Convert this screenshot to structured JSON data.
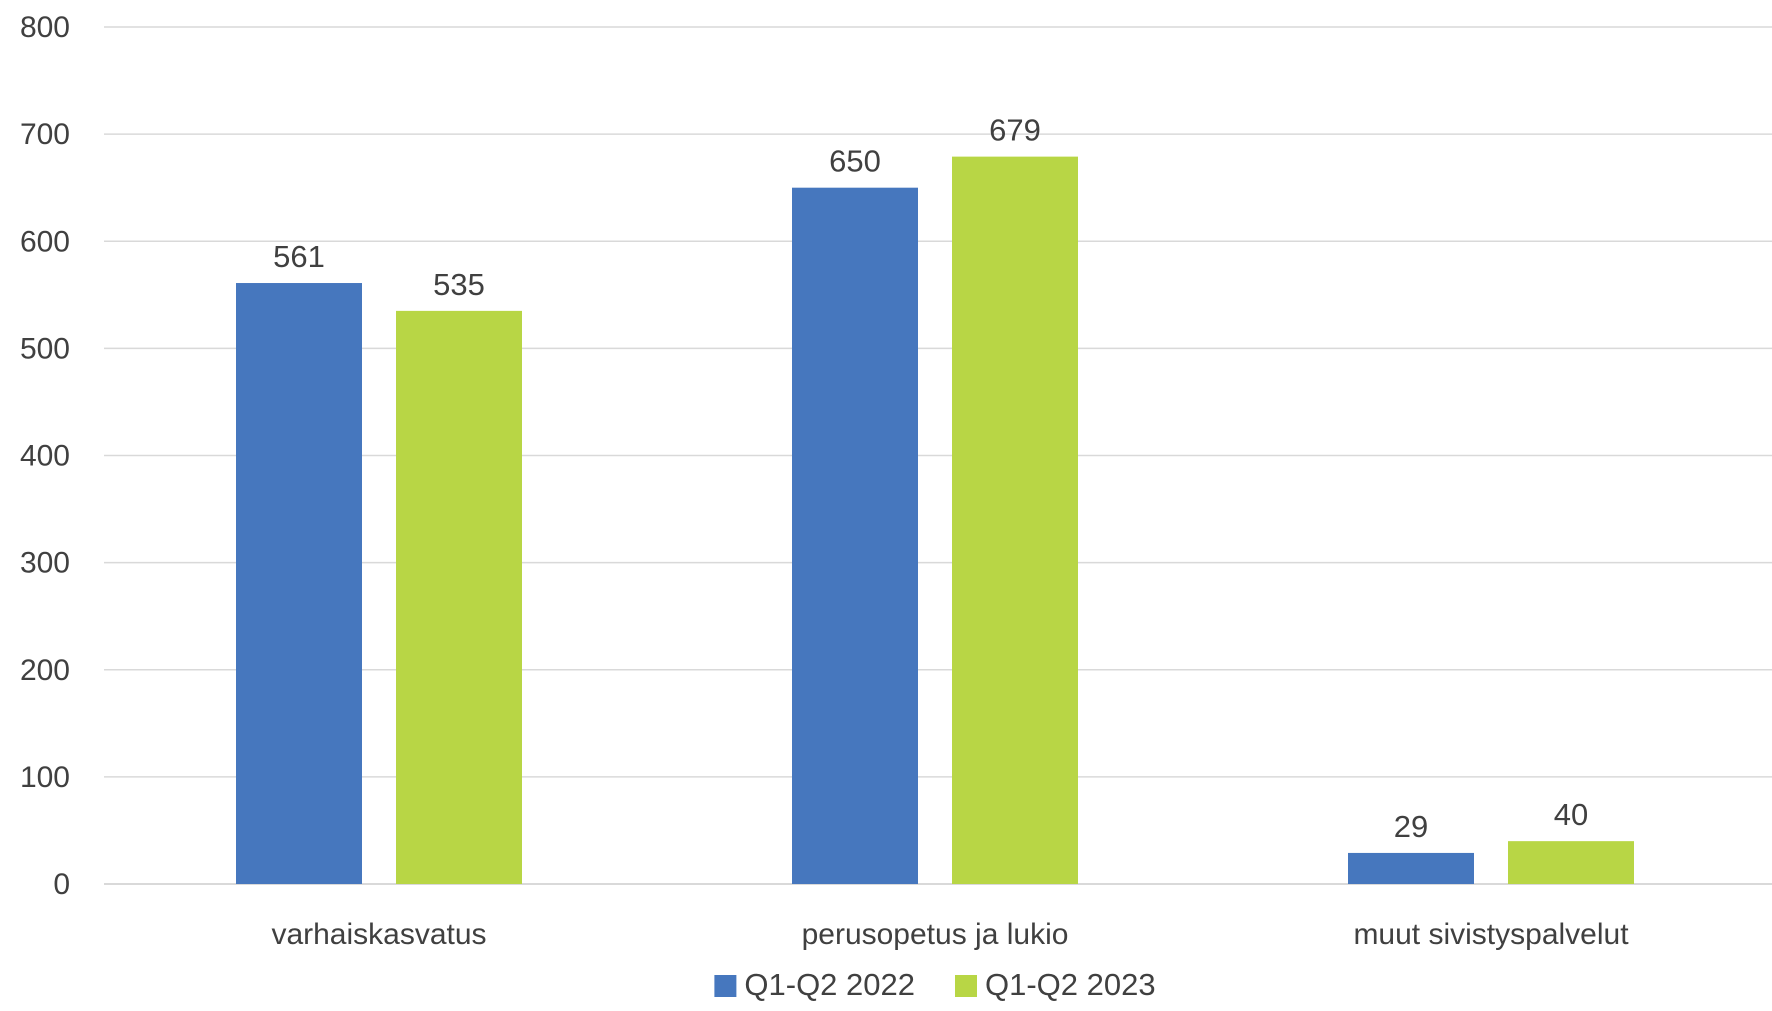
{
  "chart_data": {
    "type": "bar",
    "categories": [
      "varhaiskasvatus",
      "perusopetus ja lukio",
      "muut sivistyspalvelut"
    ],
    "series": [
      {
        "name": "Q1-Q2 2022",
        "values": [
          561,
          650,
          29
        ],
        "color": "#4677be"
      },
      {
        "name": "Q1-Q2 2023",
        "values": [
          535,
          679,
          40
        ],
        "color": "#b8d645"
      }
    ],
    "title": "",
    "xlabel": "",
    "ylabel": "",
    "ylim": [
      0,
      800
    ],
    "yticks": [
      0,
      100,
      200,
      300,
      400,
      500,
      600,
      700,
      800
    ],
    "grid": true,
    "data_labels": true,
    "legend_position": "bottom"
  }
}
